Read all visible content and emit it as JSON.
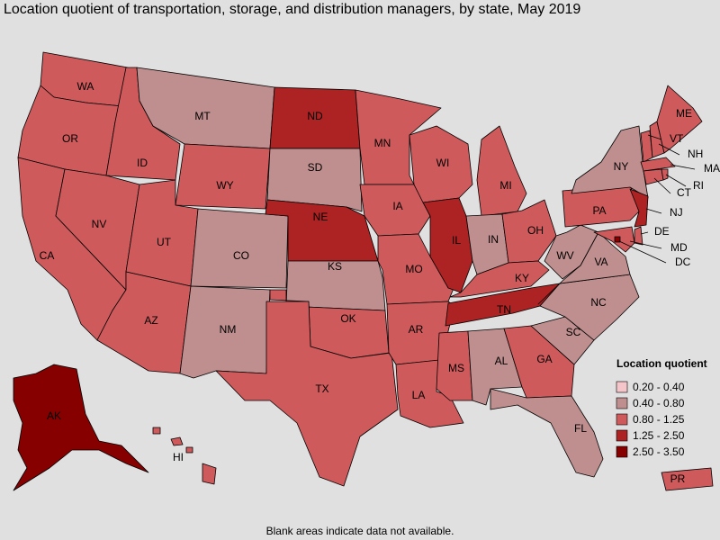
{
  "title": "Location quotient of transportation, storage, and distribution managers, by state, May 2019",
  "legend": {
    "title": "Location quotient",
    "items": [
      {
        "label": "0.20 - 0.40",
        "color": "#f4c6c9"
      },
      {
        "label": "0.40 - 0.80",
        "color": "#bf8e8e"
      },
      {
        "label": "0.80 - 1.25",
        "color": "#cf5a5c"
      },
      {
        "label": "1.25 - 2.50",
        "color": "#ad2222"
      },
      {
        "label": "2.50 - 3.50",
        "color": "#860000"
      }
    ]
  },
  "states": [
    {
      "label": "WA",
      "class": "0.80 - 1.25"
    },
    {
      "label": "OR",
      "class": "0.80 - 1.25"
    },
    {
      "label": "CA",
      "class": "0.80 - 1.25"
    },
    {
      "label": "NV",
      "class": "0.80 - 1.25"
    },
    {
      "label": "ID",
      "class": "0.80 - 1.25"
    },
    {
      "label": "MT",
      "class": "0.40 - 0.80"
    },
    {
      "label": "WY",
      "class": "0.80 - 1.25"
    },
    {
      "label": "UT",
      "class": "0.80 - 1.25"
    },
    {
      "label": "AZ",
      "class": "0.80 - 1.25"
    },
    {
      "label": "CO",
      "class": "0.40 - 0.80"
    },
    {
      "label": "NM",
      "class": "0.40 - 0.80"
    },
    {
      "label": "ND",
      "class": "1.25 - 2.50"
    },
    {
      "label": "SD",
      "class": "0.40 - 0.80"
    },
    {
      "label": "NE",
      "class": "1.25 - 2.50"
    },
    {
      "label": "KS",
      "class": "0.40 - 0.80"
    },
    {
      "label": "OK",
      "class": "0.80 - 1.25"
    },
    {
      "label": "TX",
      "class": "0.80 - 1.25"
    },
    {
      "label": "MN",
      "class": "0.80 - 1.25"
    },
    {
      "label": "IA",
      "class": "0.80 - 1.25"
    },
    {
      "label": "MO",
      "class": "0.80 - 1.25"
    },
    {
      "label": "AR",
      "class": "0.80 - 1.25"
    },
    {
      "label": "LA",
      "class": "0.80 - 1.25"
    },
    {
      "label": "WI",
      "class": "0.80 - 1.25"
    },
    {
      "label": "MI",
      "class": "0.80 - 1.25"
    },
    {
      "label": "IL",
      "class": "1.25 - 2.50"
    },
    {
      "label": "IN",
      "class": "0.40 - 0.80"
    },
    {
      "label": "OH",
      "class": "0.80 - 1.25"
    },
    {
      "label": "KY",
      "class": "0.80 - 1.25"
    },
    {
      "label": "TN",
      "class": "1.25 - 2.50"
    },
    {
      "label": "MS",
      "class": "0.80 - 1.25"
    },
    {
      "label": "AL",
      "class": "0.40 - 0.80"
    },
    {
      "label": "GA",
      "class": "0.80 - 1.25"
    },
    {
      "label": "FL",
      "class": "0.40 - 0.80"
    },
    {
      "label": "SC",
      "class": "0.40 - 0.80"
    },
    {
      "label": "NC",
      "class": "0.40 - 0.80"
    },
    {
      "label": "VA",
      "class": "0.40 - 0.80"
    },
    {
      "label": "WV",
      "class": "0.40 - 0.80"
    },
    {
      "label": "PA",
      "class": "0.80 - 1.25"
    },
    {
      "label": "NY",
      "class": "0.40 - 0.80"
    },
    {
      "label": "NJ",
      "class": "1.25 - 2.50"
    },
    {
      "label": "DE",
      "class": "0.80 - 1.25"
    },
    {
      "label": "MD",
      "class": "0.80 - 1.25"
    },
    {
      "label": "DC",
      "class": "2.50 - 3.50"
    },
    {
      "label": "VT",
      "class": "0.80 - 1.25"
    },
    {
      "label": "NH",
      "class": "0.80 - 1.25"
    },
    {
      "label": "ME",
      "class": "0.80 - 1.25"
    },
    {
      "label": "MA",
      "class": "0.80 - 1.25"
    },
    {
      "label": "CT",
      "class": "0.80 - 1.25"
    },
    {
      "label": "RI",
      "class": "0.80 - 1.25"
    },
    {
      "label": "AK",
      "class": "2.50 - 3.50"
    },
    {
      "label": "HI",
      "class": "0.80 - 1.25"
    },
    {
      "label": "PR",
      "class": "0.80 - 1.25"
    }
  ],
  "note": "Blank areas indicate data not available."
}
